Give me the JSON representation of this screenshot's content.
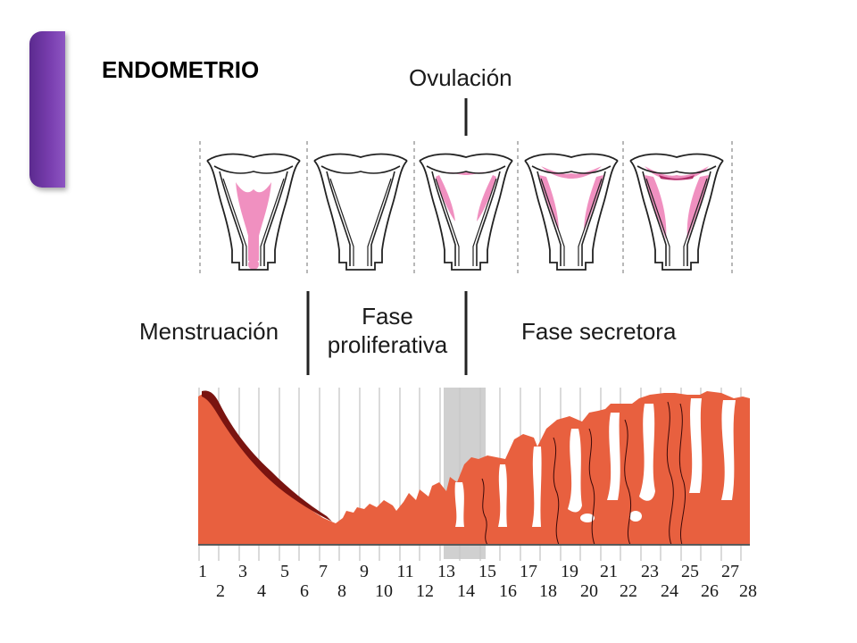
{
  "slide": {
    "title": "ENDOMETRIO",
    "accent_color": "#6a35a0"
  },
  "diagram": {
    "ovulation_label": "Ovulación",
    "phases": {
      "menstruation": "Menstruación",
      "proliferative_line1": "Fase",
      "proliferative_line2": "proliferativa",
      "secretory": "Fase secretora"
    },
    "uterus_stages": [
      {
        "stage": 1,
        "lining": "menstrual"
      },
      {
        "stage": 2,
        "lining": "thin"
      },
      {
        "stage": 3,
        "lining": "growing"
      },
      {
        "stage": 4,
        "lining": "thick"
      },
      {
        "stage": 5,
        "lining": "thickest"
      }
    ],
    "days": [
      "1",
      "2",
      "3",
      "4",
      "5",
      "6",
      "7",
      "8",
      "9",
      "10",
      "11",
      "12",
      "13",
      "14",
      "15",
      "16",
      "17",
      "18",
      "19",
      "20",
      "21",
      "22",
      "23",
      "24",
      "25",
      "26",
      "27",
      "28"
    ],
    "colors": {
      "tissue": "#e8603f",
      "tissue_dark": "#7a1410",
      "lining_pink": "#f090c0",
      "ovulation_band": "#c8c8c8"
    }
  }
}
